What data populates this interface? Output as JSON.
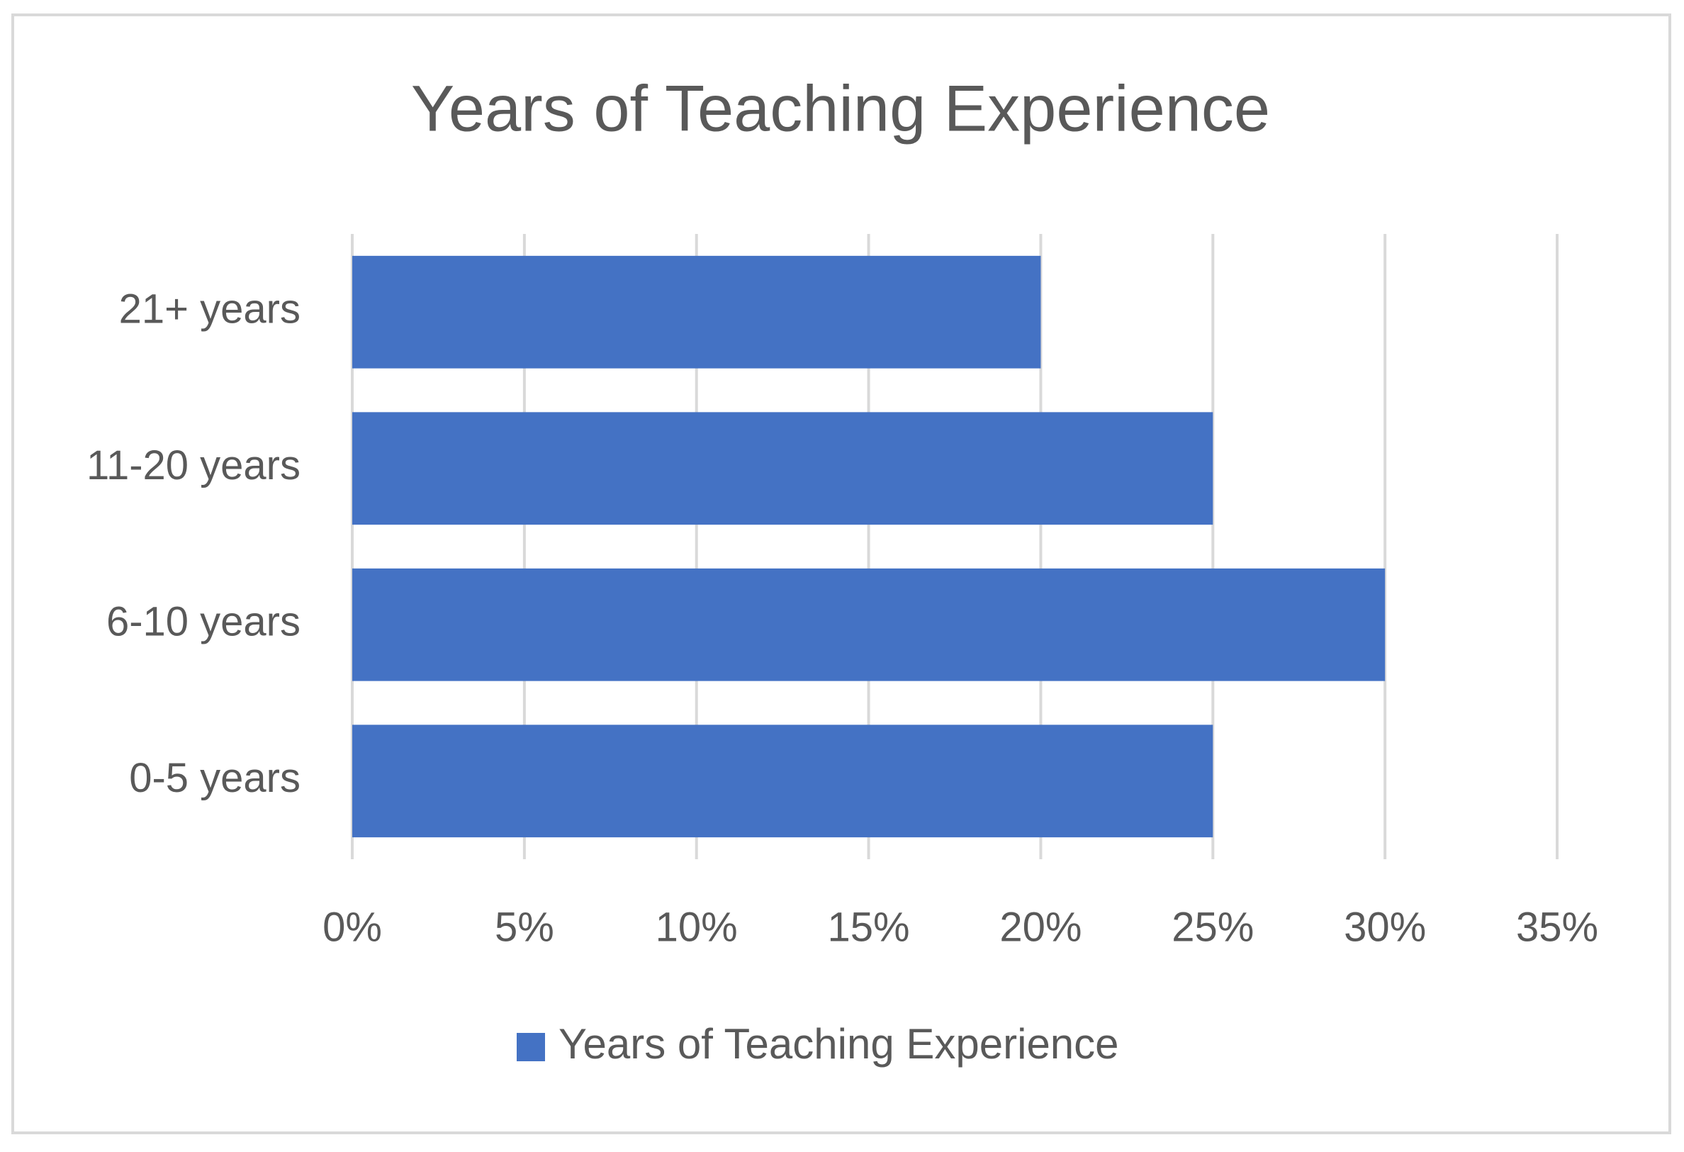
{
  "chart_data": {
    "type": "bar",
    "orientation": "horizontal",
    "title": "Years of Teaching Experience",
    "categories": [
      "0-5 years",
      "6-10 years",
      "11-20 years",
      "21+ years"
    ],
    "series": [
      {
        "name": "Years of Teaching Experience",
        "color": "#4472c4",
        "values": [
          25,
          30,
          25,
          20
        ]
      }
    ],
    "xlim": [
      0,
      35
    ],
    "xticks": [
      {
        "value": 0,
        "label": "0%"
      },
      {
        "value": 5,
        "label": "5%"
      },
      {
        "value": 10,
        "label": "10%"
      },
      {
        "value": 15,
        "label": "15%"
      },
      {
        "value": 20,
        "label": "20%"
      },
      {
        "value": 25,
        "label": "25%"
      },
      {
        "value": 30,
        "label": "30%"
      },
      {
        "value": 35,
        "label": "35%"
      }
    ],
    "grid": true,
    "legend": "bottom"
  }
}
